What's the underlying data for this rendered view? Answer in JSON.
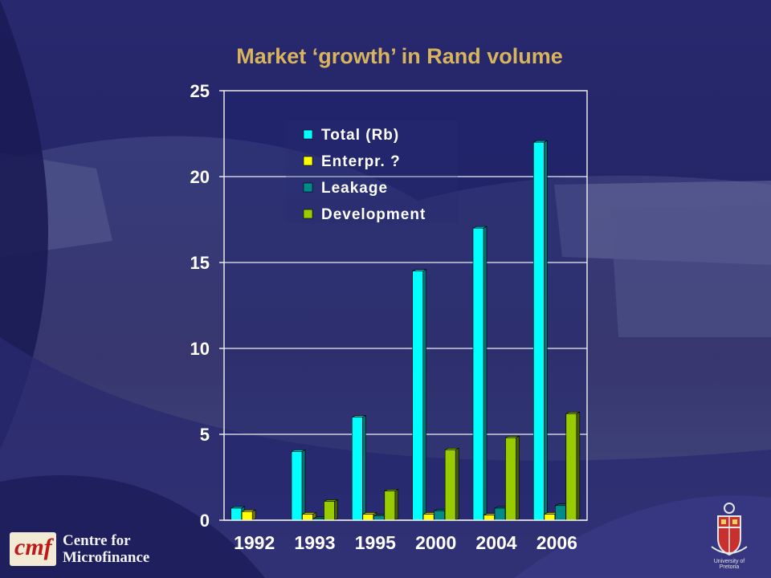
{
  "chart_data": {
    "type": "bar",
    "title": "Market ‘growth’ in Rand volume",
    "categories": [
      "1992",
      "1993",
      "1995",
      "2000",
      "2004",
      "2006"
    ],
    "series": [
      {
        "name": "Total (Rb)",
        "color": "#00ffff",
        "values": [
          0.7,
          4.0,
          6.0,
          14.5,
          17.0,
          22.0
        ]
      },
      {
        "name": "Enterpr. ?",
        "color": "#ffff00",
        "values": [
          0.5,
          0.35,
          0.35,
          0.35,
          0.3,
          0.35
        ]
      },
      {
        "name": "Leakage",
        "color": "#008b8b",
        "values": [
          0.0,
          0.1,
          0.25,
          0.55,
          0.7,
          0.85
        ]
      },
      {
        "name": "Development",
        "color": "#99cc00",
        "values": [
          0.0,
          1.1,
          1.7,
          4.1,
          4.8,
          6.2
        ]
      }
    ],
    "ylim": [
      0,
      25
    ],
    "yticks": [
      0,
      5,
      10,
      15,
      20,
      25
    ],
    "grid": true,
    "legend": "top-center",
    "xlabel": "",
    "ylabel": ""
  },
  "branding": {
    "left_logo_line1": "Centre for",
    "left_logo_line2": "Microfinance",
    "left_logo_mark": "cmf",
    "right_logo_caption": "University of Pretoria",
    "right_logo_icon": "university-crest-icon"
  }
}
